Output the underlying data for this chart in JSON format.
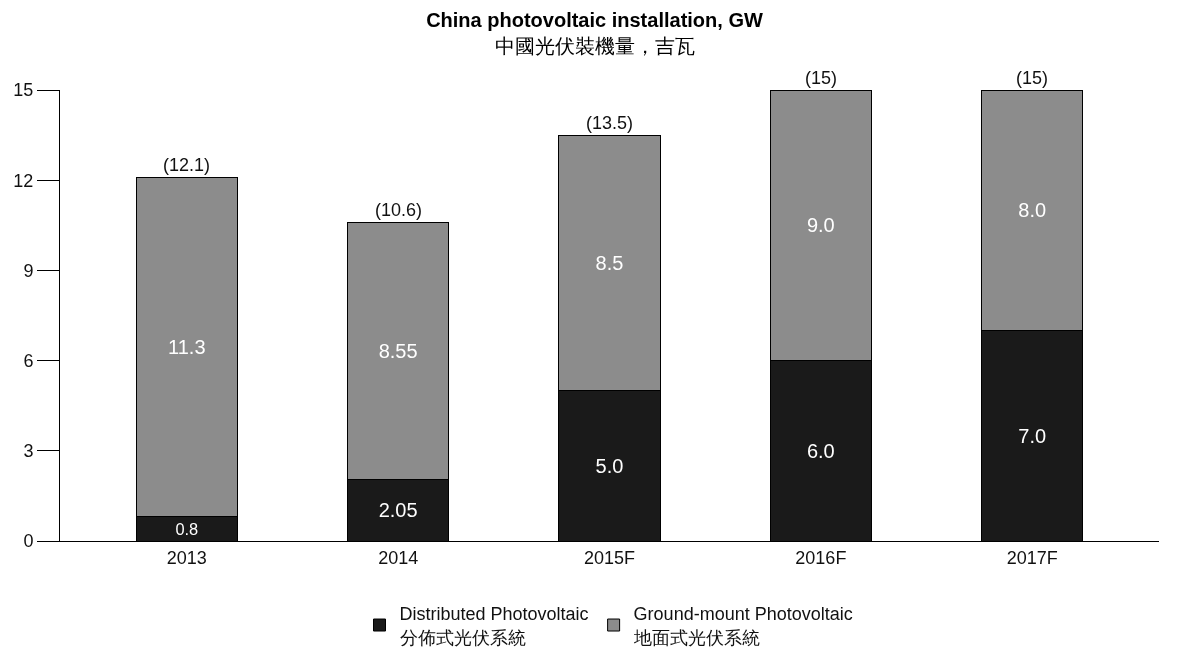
{
  "chart_data": {
    "type": "bar",
    "title": "China photovoltaic installation, GW",
    "subtitle": "中國光伏裝機量，吉瓦",
    "categories": [
      "2013",
      "2014",
      "2015F",
      "2016F",
      "2017F"
    ],
    "stacked": true,
    "series": [
      {
        "name": "Distributed Photovoltaic\n分佈式光伏系統",
        "color": "#1a1a1a",
        "values": [
          0.8,
          2.05,
          5.0,
          6.0,
          7.0
        ],
        "value_labels": [
          "0.8",
          "2.05",
          "5.0",
          "6.0",
          "7.0"
        ]
      },
      {
        "name": "Ground-mount Photovoltaic\n地面式光伏系統",
        "color": "#8c8c8c",
        "values": [
          11.3,
          8.55,
          8.5,
          9.0,
          8.0
        ],
        "value_labels": [
          "11.3",
          "8.55",
          "8.5",
          "9.0",
          "8.0"
        ]
      }
    ],
    "totals": [
      "(12.1)",
      "(10.6)",
      "(13.5)",
      "(15)",
      "(15)"
    ],
    "ylim": [
      0,
      15
    ],
    "yticks": [
      0,
      3,
      6,
      9,
      12,
      15
    ],
    "legend": "bottom"
  }
}
